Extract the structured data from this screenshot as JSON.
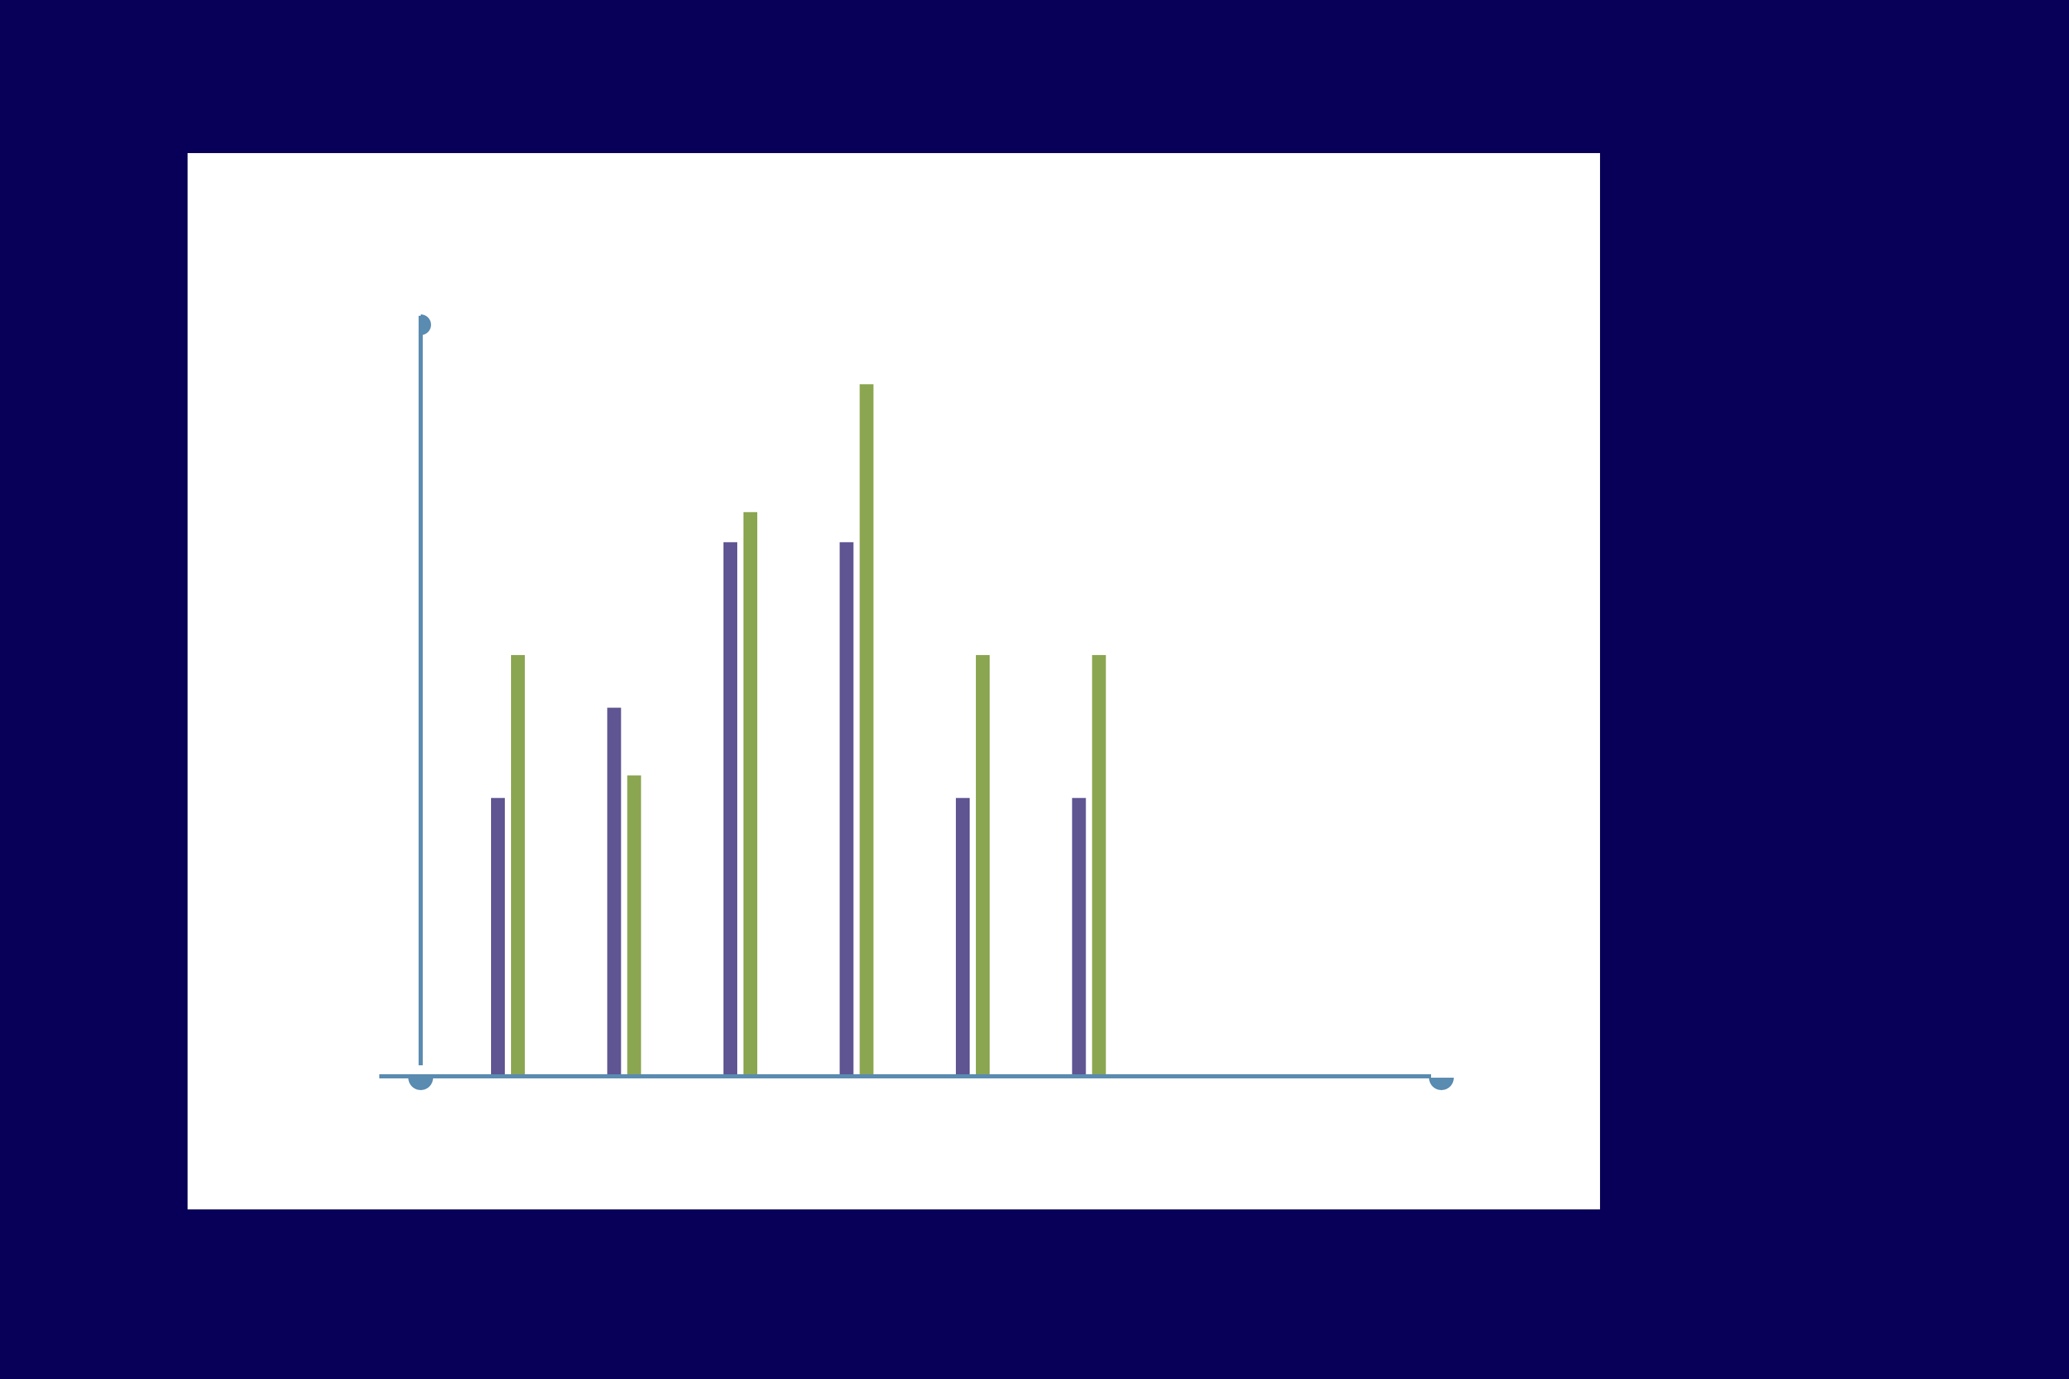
{
  "page": {
    "background_color": "#080058",
    "panel_color": "#FFFFFF"
  },
  "chart_data": {
    "type": "bar",
    "title": "",
    "xlabel": "",
    "ylabel": "",
    "categories": [
      "",
      "",
      "",
      "",
      "",
      ""
    ],
    "series": [
      {
        "color": "#5E5592",
        "values": [
          3.7,
          4.9,
          7.1,
          7.1,
          3.7,
          3.7
        ]
      },
      {
        "color": "#8BA650",
        "values": [
          5.6,
          4.0,
          7.5,
          9.2,
          5.6,
          5.6
        ]
      }
    ],
    "ylim": [
      0,
      10
    ],
    "xlim": [
      0,
      10
    ],
    "grid": false,
    "legend": "none",
    "axis_color": "#5A8BB0"
  }
}
